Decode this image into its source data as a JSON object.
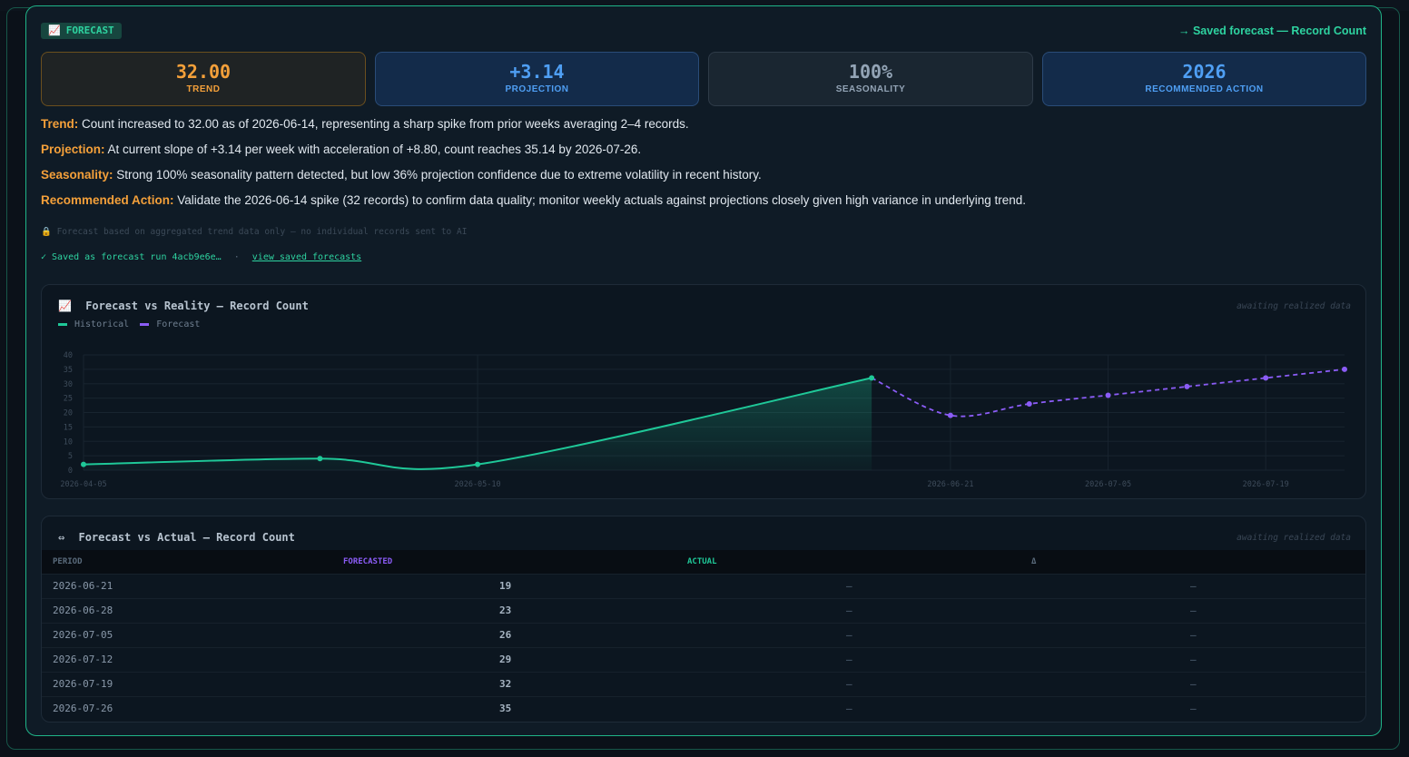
{
  "badge": {
    "icon": "chart-icon",
    "icon_glyph": "📈",
    "label": "FORECAST"
  },
  "saved_link": "→ Saved forecast — Record Count",
  "stats": [
    {
      "value": "32.00",
      "label": "TREND",
      "color": "#f4a03a"
    },
    {
      "value": "+3.14",
      "label": "PROJECTION",
      "color": "#4f9ff4"
    },
    {
      "value": "100%",
      "label": "SEASONALITY",
      "color": "#93a4b6"
    },
    {
      "value": "2026",
      "label": "RECOMMENDED ACTION",
      "color": "#4f9ff4"
    }
  ],
  "insights": [
    {
      "key": "Trend:",
      "text": "Count increased to 32.00 as of 2026-06-14, representing a sharp spike from prior weeks averaging 2–4 records."
    },
    {
      "key": "Projection:",
      "text": "At current slope of +3.14 per week with acceleration of +8.80, count reaches 35.14 by 2026-07-26."
    },
    {
      "key": "Seasonality:",
      "text": "Strong 100% seasonality pattern detected, but low 36% projection confidence due to extreme volatility in recent history."
    },
    {
      "key": "Recommended Action:",
      "text": "Validate the 2026-06-14 spike (32 records) to confirm data quality; monitor weekly actuals against projections closely given high variance in underlying trend."
    }
  ],
  "privacy_note": {
    "icon": "lock-icon",
    "icon_glyph": "🔒",
    "text": "Forecast based on aggregated trend data only — no individual records sent to AI"
  },
  "saved_run": {
    "text": "✓ Saved as forecast run 4acb9e6e…",
    "sep": "·",
    "link": "view saved forecasts"
  },
  "chart_panel": {
    "icon_glyph": "📈",
    "title": "Forecast vs Reality — Record Count",
    "status": "awaiting realized data",
    "legend": [
      {
        "name": "Historical",
        "color": "#1fc898"
      },
      {
        "name": "Forecast",
        "color": "#8b5cf6"
      }
    ]
  },
  "chart_data": {
    "type": "line",
    "ylim": [
      0,
      40
    ],
    "yticks": [
      0,
      5,
      10,
      15,
      20,
      25,
      30,
      35,
      40
    ],
    "xticks": [
      "2026-04-05",
      "2026-05-10",
      "2026-06-21",
      "2026-07-05",
      "2026-07-19"
    ],
    "grid": true,
    "legend_position": "top-left",
    "series": [
      {
        "name": "Historical",
        "color": "#1fc898",
        "dates": [
          "2026-04-05",
          "2026-04-26",
          "2026-05-10",
          "2026-06-14"
        ],
        "values": [
          2,
          4,
          2,
          32
        ]
      },
      {
        "name": "Forecast",
        "color": "#8b5cf6",
        "dates": [
          "2026-06-14",
          "2026-06-21",
          "2026-06-28",
          "2026-07-05",
          "2026-07-12",
          "2026-07-19",
          "2026-07-26"
        ],
        "values": [
          32,
          19,
          23,
          26,
          29,
          32,
          35
        ]
      }
    ]
  },
  "table_panel": {
    "icon_glyph": "⇔",
    "title": "Forecast vs Actual — Record Count",
    "status": "awaiting realized data",
    "headers": {
      "period": "PERIOD",
      "forecasted": "FORECASTED",
      "actual": "ACTUAL",
      "delta": "Δ"
    },
    "rows": [
      {
        "period": "2026-06-21",
        "forecasted": "19",
        "actual": "—",
        "delta": "—"
      },
      {
        "period": "2026-06-28",
        "forecasted": "23",
        "actual": "—",
        "delta": "—"
      },
      {
        "period": "2026-07-05",
        "forecasted": "26",
        "actual": "—",
        "delta": "—"
      },
      {
        "period": "2026-07-12",
        "forecasted": "29",
        "actual": "—",
        "delta": "—"
      },
      {
        "period": "2026-07-19",
        "forecasted": "32",
        "actual": "—",
        "delta": "—"
      },
      {
        "period": "2026-07-26",
        "forecasted": "35",
        "actual": "—",
        "delta": "—"
      }
    ]
  }
}
